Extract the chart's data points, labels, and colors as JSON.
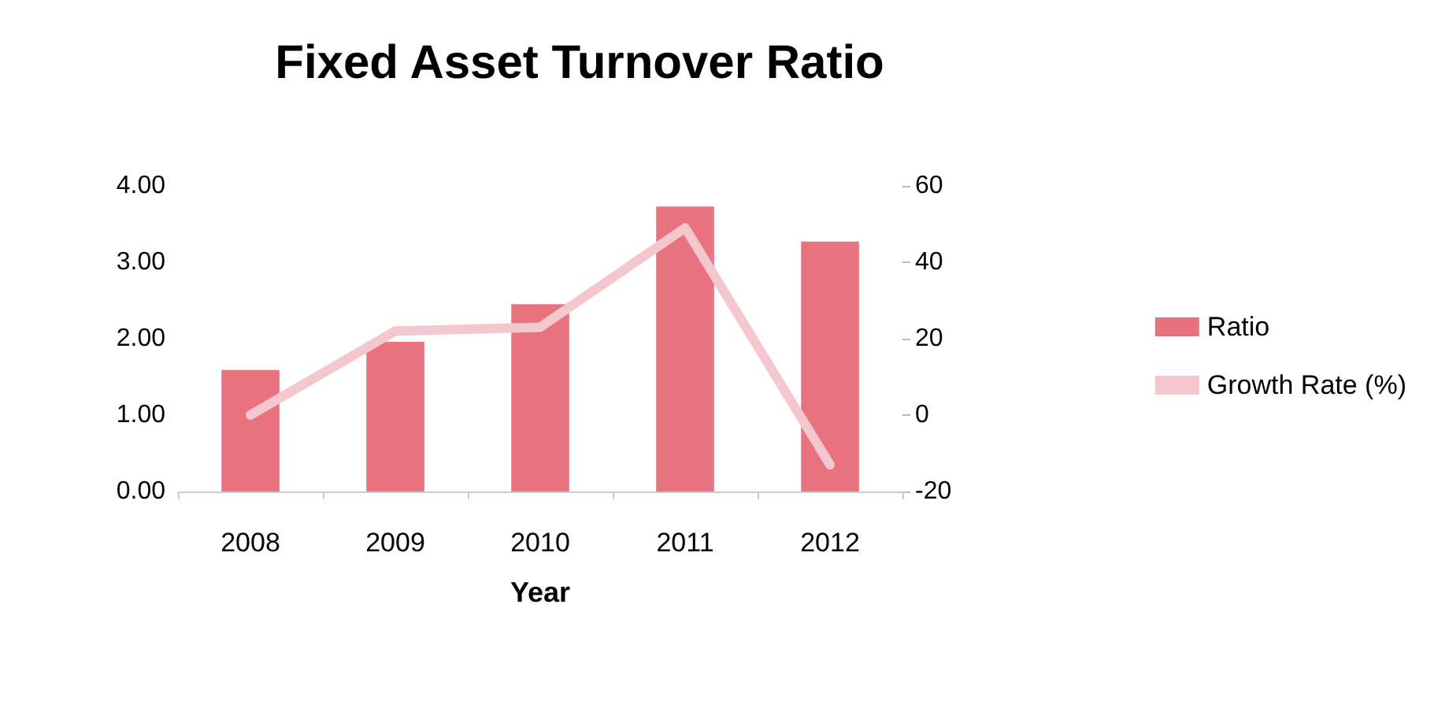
{
  "chart_data": {
    "type": "bar",
    "title": "Fixed Asset Turnover Ratio",
    "xlabel": "Year",
    "categories": [
      "2008",
      "2009",
      "2010",
      "2011",
      "2012"
    ],
    "series": [
      {
        "name": "Ratio",
        "color": "#e8737f",
        "values": [
          1.59,
          1.96,
          2.45,
          3.73,
          3.27
        ]
      },
      {
        "name": "Growth Rate (%)",
        "type": "line",
        "axis": "y2",
        "color": "#f4c6cd",
        "values": [
          0,
          22,
          23,
          49,
          -13
        ]
      }
    ],
    "ylim": [
      0,
      4
    ],
    "yticks": [
      {
        "value": 0,
        "label": "0.00"
      },
      {
        "value": 1,
        "label": "1.00"
      },
      {
        "value": 2,
        "label": "2.00"
      },
      {
        "value": 3,
        "label": "3.00"
      },
      {
        "value": 4,
        "label": "4.00"
      }
    ],
    "y2lim": [
      -20,
      60
    ],
    "y2ticks": [
      -20,
      0,
      20,
      40,
      60
    ],
    "grid": false,
    "legend": "right",
    "line_style": "solid"
  }
}
